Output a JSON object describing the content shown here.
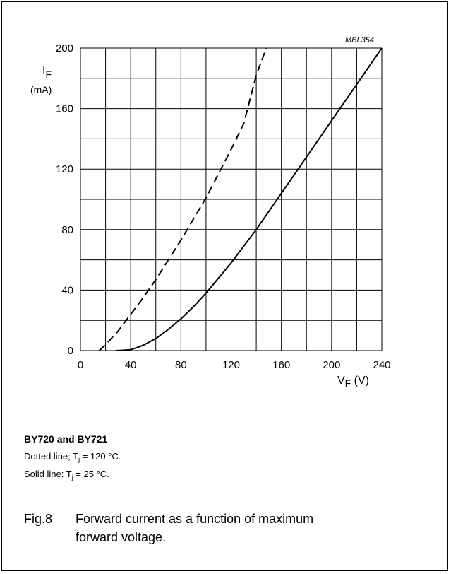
{
  "chart_data": {
    "type": "line",
    "code": "MBL354",
    "y_unit_label": {
      "base": "I",
      "sub": "F",
      "unit": "(mA)"
    },
    "x_unit_label": {
      "base": "V",
      "sub": "F",
      "unit": " (V)"
    },
    "xlim": [
      0,
      240
    ],
    "ylim": [
      0,
      200
    ],
    "x_ticks": [
      "0",
      "40",
      "80",
      "120",
      "160",
      "200",
      "240"
    ],
    "y_ticks": [
      "0",
      "40",
      "80",
      "120",
      "160",
      "200"
    ],
    "grid": true,
    "series": [
      {
        "style": "dashed",
        "x": [
          15,
          20,
          30,
          40,
          50,
          60,
          70,
          80,
          90,
          100,
          110,
          120,
          130,
          140,
          148
        ],
        "y": [
          0,
          4,
          13,
          24,
          35,
          47,
          60,
          73,
          87,
          101,
          117,
          133,
          150,
          182,
          200
        ]
      },
      {
        "style": "solid",
        "x": [
          28,
          35,
          40,
          45,
          50,
          60,
          70,
          80,
          90,
          100,
          110,
          120,
          130,
          140,
          150,
          160,
          170,
          180,
          190,
          200,
          210,
          220,
          230,
          240
        ],
        "y": [
          0,
          0.3,
          0.6,
          2,
          3.5,
          8,
          14,
          21,
          29,
          38,
          48,
          58,
          69,
          80,
          92,
          104,
          116,
          128,
          140,
          152,
          164,
          176,
          188,
          200
        ]
      }
    ]
  },
  "caption": {
    "device": "BY720 and BY721",
    "line1": {
      "prefix": "Dotted line; T",
      "sub": "j",
      "suffix": " = 120 °C."
    },
    "line2": {
      "prefix": "Solid line: T",
      "sub": "j",
      "suffix": " = 25 °C."
    },
    "fig_number": "Fig.8",
    "fig_title_line1": "Forward current as a function of maximum",
    "fig_title_line2": "forward voltage."
  }
}
